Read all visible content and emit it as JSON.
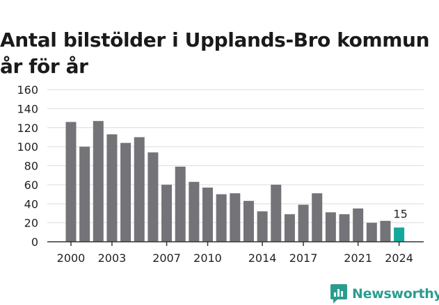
{
  "chart_data": {
    "type": "bar",
    "title_lines": [
      "Antal bilstölder i Upplands-Bro kommun",
      "år för år"
    ],
    "xlabel": "",
    "ylabel": "",
    "x": [
      2000,
      2001,
      2002,
      2003,
      2004,
      2005,
      2006,
      2007,
      2008,
      2009,
      2010,
      2011,
      2012,
      2013,
      2014,
      2015,
      2016,
      2017,
      2018,
      2019,
      2020,
      2021,
      2022,
      2023,
      2024
    ],
    "values": [
      126,
      100,
      127,
      113,
      104,
      110,
      94,
      60,
      79,
      63,
      57,
      50,
      51,
      43,
      32,
      60,
      29,
      39,
      51,
      31,
      29,
      35,
      20,
      22,
      15
    ],
    "x_tick_labels": [
      2000,
      2003,
      2007,
      2010,
      2014,
      2017,
      2021,
      2024
    ],
    "ylim": [
      0,
      160
    ],
    "y_ticks": [
      0,
      20,
      40,
      60,
      80,
      100,
      120,
      140,
      160
    ],
    "grid": "horizontal",
    "bar_color": "#747378",
    "highlight_color": "#13a89e",
    "highlight_index": 24,
    "annotations": [
      {
        "x": 2024,
        "text": "15"
      }
    ]
  },
  "brand": {
    "name": "Newsworthy",
    "icon": "newsworthy-logo-icon",
    "color": "#2a9d8f"
  }
}
